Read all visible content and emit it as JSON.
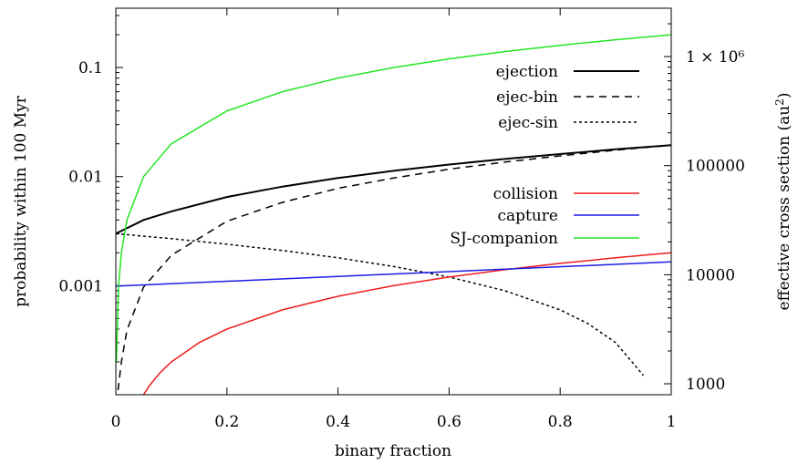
{
  "chart_data": {
    "type": "line",
    "xlabel": "binary fraction",
    "ylabel": "probability within 100 Myr",
    "y2label_prefix": "effective cross section (au",
    "y2label_sup": "2",
    "y2label_suffix": ")",
    "xlim": [
      0,
      1
    ],
    "ylim": [
      0.0001,
      0.35
    ],
    "yscale": "log",
    "x_ticks": [
      "0",
      "0.2",
      "0.4",
      "0.6",
      "0.8",
      "1"
    ],
    "y_ticks": [
      "0.1",
      "0.01",
      "0.001"
    ],
    "y2_ticks": [
      "1 × 10⁶",
      "100000",
      "10000",
      "1000"
    ],
    "legend_position": "top-right",
    "series": [
      {
        "name": "ejection",
        "color": "#000000",
        "dash": "solid",
        "x": [
          0,
          0.05,
          0.1,
          0.2,
          0.3,
          0.4,
          0.5,
          0.6,
          0.7,
          0.8,
          0.9,
          1.0
        ],
        "y": [
          0.003,
          0.004,
          0.0048,
          0.0065,
          0.0081,
          0.0097,
          0.0113,
          0.0129,
          0.0145,
          0.0161,
          0.0178,
          0.0194
        ]
      },
      {
        "name": "ejec-bin",
        "color": "#000000",
        "dash": "dashed",
        "x": [
          0.004,
          0.01,
          0.02,
          0.05,
          0.1,
          0.2,
          0.3,
          0.4,
          0.5,
          0.6,
          0.7,
          0.8,
          0.9,
          1.0
        ],
        "y": [
          0.00011,
          0.0002,
          0.00039,
          0.00097,
          0.0019,
          0.0039,
          0.0058,
          0.0078,
          0.0097,
          0.0117,
          0.0136,
          0.0155,
          0.0175,
          0.0194
        ]
      },
      {
        "name": "ejec-sin",
        "color": "#000000",
        "dash": "dotted",
        "x": [
          0,
          0.1,
          0.2,
          0.3,
          0.4,
          0.5,
          0.6,
          0.7,
          0.8,
          0.85,
          0.9,
          0.95
        ],
        "y": [
          0.003,
          0.0027,
          0.0024,
          0.0021,
          0.0018,
          0.0015,
          0.0012,
          0.0009,
          0.0006,
          0.00045,
          0.0003,
          0.00015
        ]
      },
      {
        "name": "collision",
        "color": "#ee1c1c",
        "dash": "solid",
        "x": [
          0.05,
          0.06,
          0.08,
          0.1,
          0.15,
          0.2,
          0.3,
          0.4,
          0.5,
          0.6,
          0.7,
          0.8,
          0.9,
          1.0
        ],
        "y": [
          0.0001,
          0.00012,
          0.00016,
          0.0002,
          0.0003,
          0.0004,
          0.0006,
          0.0008,
          0.001,
          0.0012,
          0.0014,
          0.0016,
          0.0018,
          0.002
        ]
      },
      {
        "name": "capture",
        "color": "#1c1ce6",
        "dash": "solid",
        "x": [
          0,
          1.0
        ],
        "y": [
          0.00099,
          0.00165
        ]
      },
      {
        "name": "SJ-companion",
        "color": "#22e622",
        "dash": "solid",
        "x": [
          0.001,
          0.005,
          0.01,
          0.02,
          0.05,
          0.1,
          0.2,
          0.3,
          0.4,
          0.5,
          0.6,
          0.7,
          0.8,
          0.9,
          1.0
        ],
        "y": [
          0.0002,
          0.001,
          0.002,
          0.004,
          0.01,
          0.02,
          0.04,
          0.06,
          0.08,
          0.1,
          0.12,
          0.14,
          0.16,
          0.18,
          0.2
        ]
      }
    ]
  }
}
